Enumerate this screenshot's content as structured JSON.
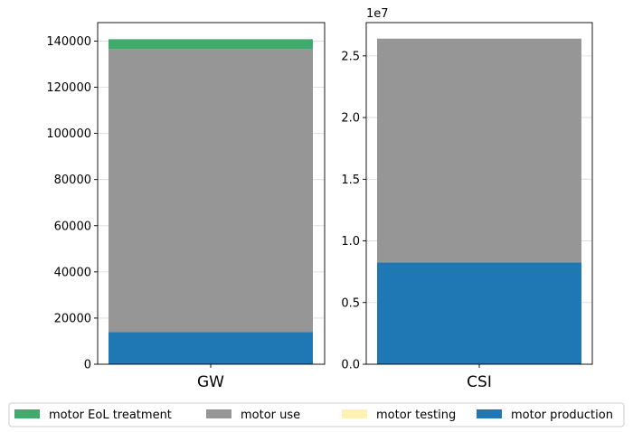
{
  "chart_data": [
    {
      "type": "bar",
      "stacked": true,
      "categories": [
        "GW"
      ],
      "ylim": [
        0,
        148000
      ],
      "yticks": [
        0,
        20000,
        40000,
        60000,
        80000,
        100000,
        120000,
        140000
      ],
      "ytick_labels": [
        "0",
        "20000",
        "40000",
        "60000",
        "80000",
        "100000",
        "120000",
        "140000"
      ],
      "grid": true,
      "series": [
        {
          "name": "motor production",
          "values": [
            14000
          ],
          "color": "#1f77b4"
        },
        {
          "name": "motor testing",
          "values": [
            0
          ],
          "color": "#fff2b2"
        },
        {
          "name": "motor use",
          "values": [
            122500
          ],
          "color": "#969696"
        },
        {
          "name": "motor EoL treatment",
          "values": [
            4300
          ],
          "color": "#41ab6e"
        }
      ]
    },
    {
      "type": "bar",
      "stacked": true,
      "categories": [
        "CSI"
      ],
      "ylim": [
        0,
        27700000
      ],
      "yticks": [
        0,
        5000000,
        10000000,
        15000000,
        20000000,
        25000000
      ],
      "ytick_labels": [
        "0.0",
        "0.5",
        "1.0",
        "1.5",
        "2.0",
        "2.5"
      ],
      "offset_label": "1e7",
      "grid": true,
      "series": [
        {
          "name": "motor production",
          "values": [
            8250000
          ],
          "color": "#1f77b4"
        },
        {
          "name": "motor testing",
          "values": [
            0
          ],
          "color": "#fff2b2"
        },
        {
          "name": "motor use",
          "values": [
            18150000
          ],
          "color": "#969696"
        },
        {
          "name": "motor EoL treatment",
          "values": [
            0
          ],
          "color": "#41ab6e"
        }
      ]
    }
  ],
  "legend": {
    "position": "bottom",
    "entries": [
      {
        "label": "motor EoL treatment",
        "color": "#41ab6e"
      },
      {
        "label": "motor use",
        "color": "#969696"
      },
      {
        "label": "motor testing",
        "color": "#fff2b2"
      },
      {
        "label": "motor production",
        "color": "#1f77b4"
      }
    ]
  }
}
